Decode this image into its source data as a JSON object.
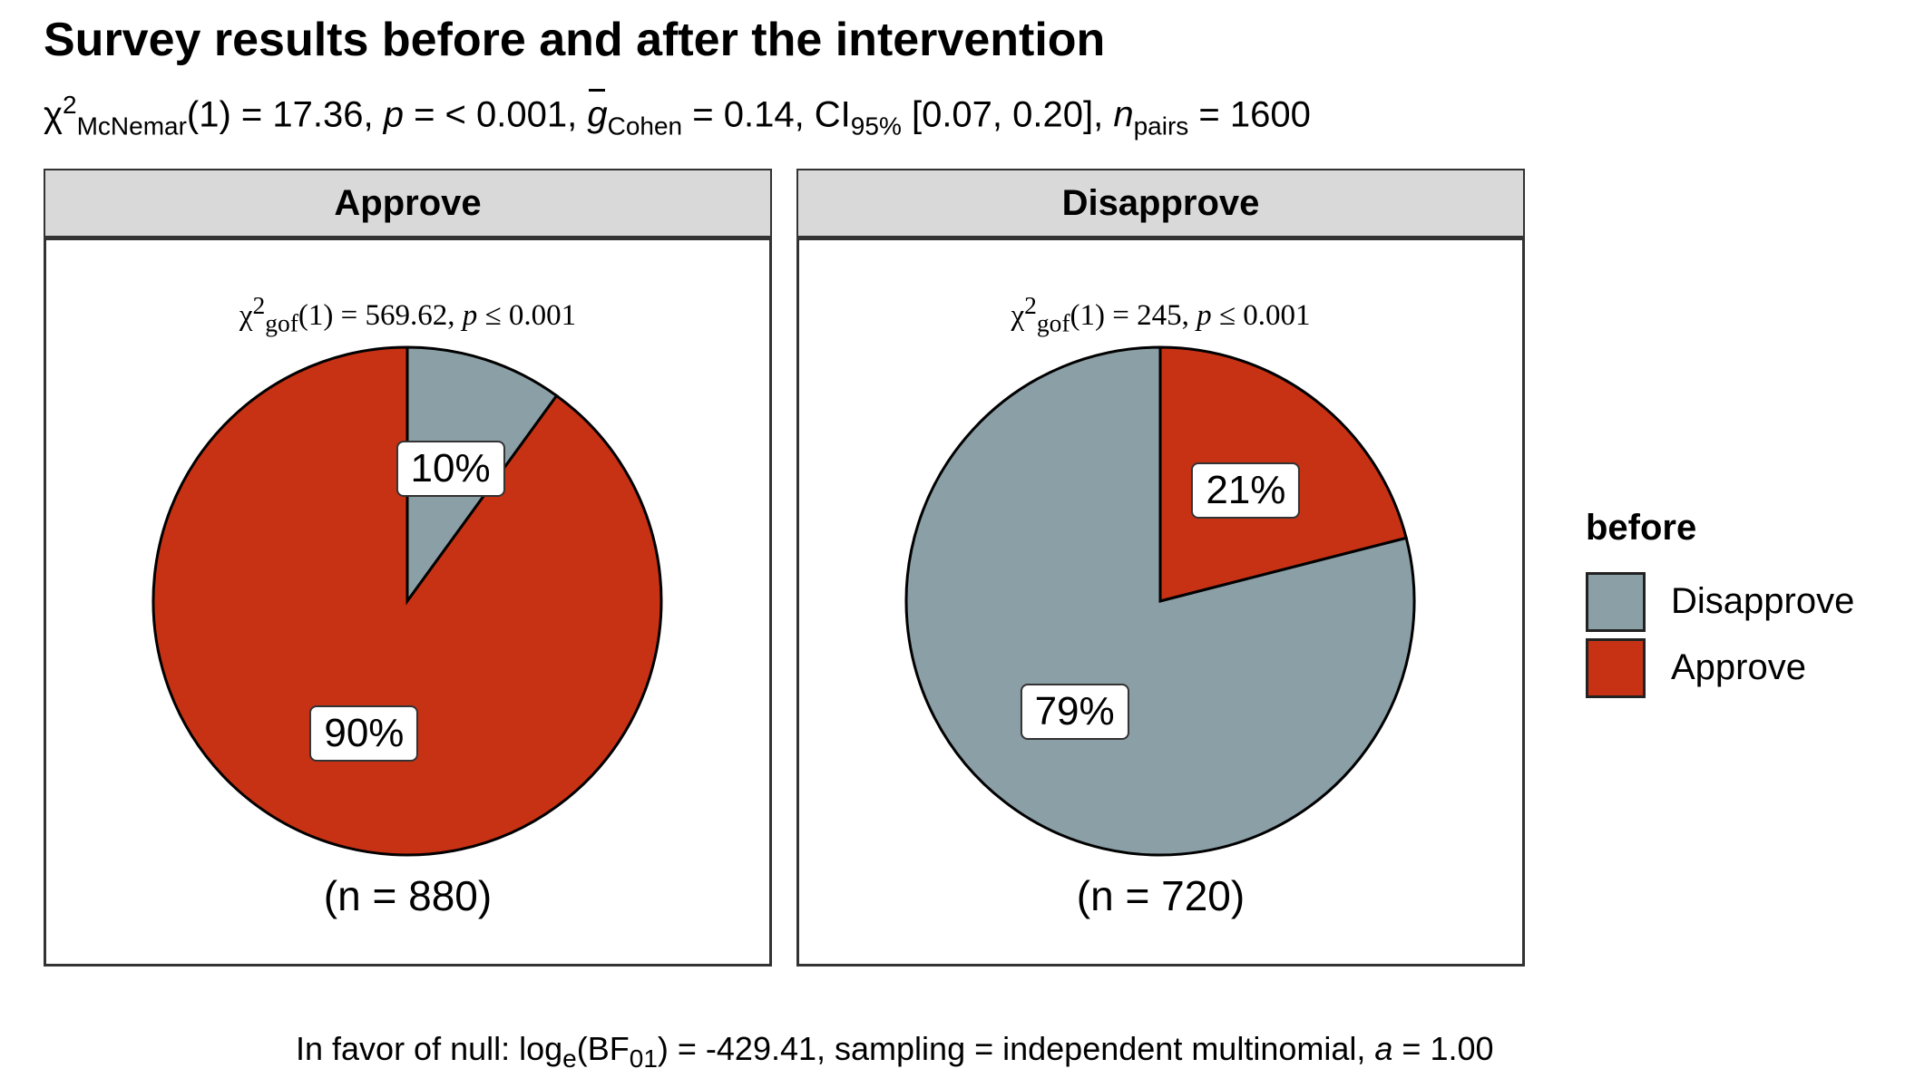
{
  "title": "Survey results before and after the intervention",
  "subtitle": {
    "chi": "χ",
    "chi_sup": "2",
    "chi_sub": "McNemar",
    "df": "(1) = 17.36, ",
    "p_sym": "p",
    "p_val": " = < 0.001, ",
    "g_sym": "g",
    "g_sub": "Cohen",
    "g_val": " = 0.14, CI",
    "ci_sub": "95%",
    "ci_val": " [0.07, 0.20], ",
    "n_sym": "n",
    "n_sub": "pairs",
    "n_val": " = 1600"
  },
  "footer": {
    "prefix": "In favor of null: log",
    "sub_e": "e",
    "bf": "(BF",
    "sub_01": "01",
    "rest": ") = -429.41, sampling = independent multinomial, ",
    "a_sym": "a",
    "a_val": " = 1.00"
  },
  "legend": {
    "title": "before",
    "items": [
      {
        "label": "Disapprove",
        "color": "#8b9fa6"
      },
      {
        "label": "Approve",
        "color": "#c83214"
      }
    ]
  },
  "chart_data": {
    "type": "pie",
    "facet_var": "after",
    "fill_var": "before",
    "colors": {
      "Disapprove": "#8b9fa6",
      "Approve": "#c83214"
    },
    "panels": [
      {
        "strip": "Approve",
        "stat": {
          "chi": "χ",
          "sup": "2",
          "sub": "gof",
          "df": "(1) = 569.62, ",
          "p": "p",
          "rel": " ≤ 0.001"
        },
        "n_label": "(n = 880)",
        "slices": [
          {
            "category": "Disapprove",
            "percent": 10,
            "label": "10%"
          },
          {
            "category": "Approve",
            "percent": 90,
            "label": "90%"
          }
        ]
      },
      {
        "strip": "Disapprove",
        "stat": {
          "chi": "χ",
          "sup": "2",
          "sub": "gof",
          "df": "(1) = 245, ",
          "p": "p",
          "rel": " ≤ 0.001"
        },
        "n_label": "(n = 720)",
        "slices": [
          {
            "category": "Approve",
            "percent": 21,
            "label": "21%"
          },
          {
            "category": "Disapprove",
            "percent": 79,
            "label": "79%"
          }
        ]
      }
    ]
  }
}
